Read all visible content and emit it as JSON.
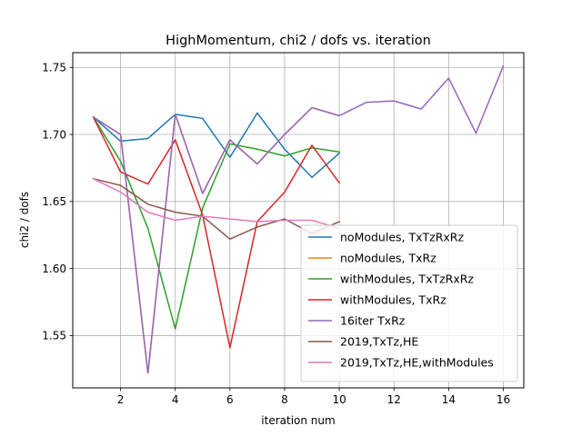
{
  "chart_data": {
    "type": "line",
    "title": "HighMomentum, chi2 / dofs vs. iteration",
    "xlabel": "iteration num",
    "ylabel": "chi2 / dofs",
    "xlim": [
      0.25,
      16.75
    ],
    "ylim": [
      1.511,
      1.761
    ],
    "xticks": [
      2,
      4,
      6,
      8,
      10,
      12,
      14,
      16
    ],
    "yticks": [
      1.55,
      1.6,
      1.65,
      1.7,
      1.75
    ],
    "ytick_labels": [
      "1.55",
      "1.60",
      "1.65",
      "1.70",
      "1.75"
    ],
    "grid": true,
    "legend_position": "lower-right",
    "series": [
      {
        "name": "noModules, TxTzRxRz",
        "color": "#1f77b4",
        "x": [
          1,
          2,
          3,
          4,
          5,
          6,
          7,
          8,
          9,
          10
        ],
        "values": [
          1.713,
          1.695,
          1.697,
          1.715,
          1.712,
          1.683,
          1.716,
          1.689,
          1.668,
          1.686
        ]
      },
      {
        "name": "noModules, TxRz",
        "color": "#ff7f0e",
        "x": [
          1,
          2,
          3,
          4,
          5,
          6,
          7,
          8,
          9,
          10
        ],
        "values": [
          1.713,
          1.7,
          1.522,
          1.715,
          1.656,
          1.696,
          1.678,
          1.7,
          1.72,
          1.714
        ]
      },
      {
        "name": "withModules, TxTzRxRz",
        "color": "#2ca02c",
        "x": [
          1,
          2,
          3,
          4,
          5,
          6,
          7,
          8,
          9,
          10
        ],
        "values": [
          1.713,
          1.68,
          1.63,
          1.555,
          1.645,
          1.693,
          1.689,
          1.684,
          1.69,
          1.687
        ]
      },
      {
        "name": "withModules, TxRz",
        "color": "#d62728",
        "x": [
          1,
          2,
          3,
          4,
          5,
          6,
          7,
          8,
          9,
          10
        ],
        "values": [
          1.713,
          1.672,
          1.663,
          1.696,
          1.64,
          1.541,
          1.635,
          1.657,
          1.692,
          1.664
        ]
      },
      {
        "name": "16iter TxRz",
        "color": "#9467bd",
        "x": [
          1,
          2,
          3,
          4,
          5,
          6,
          7,
          8,
          9,
          10,
          11,
          12,
          13,
          14,
          15,
          16
        ],
        "values": [
          1.713,
          1.7,
          1.522,
          1.715,
          1.656,
          1.696,
          1.678,
          1.7,
          1.72,
          1.714,
          1.724,
          1.725,
          1.719,
          1.742,
          1.701,
          1.751
        ]
      },
      {
        "name": "2019,TxTz,HE",
        "color": "#8c564b",
        "x": [
          1,
          2,
          3,
          4,
          5,
          6,
          7,
          8,
          9,
          10
        ],
        "values": [
          1.667,
          1.662,
          1.648,
          1.642,
          1.639,
          1.622,
          1.631,
          1.637,
          1.626,
          1.635
        ]
      },
      {
        "name": "2019,TxTz,HE,withModules",
        "color": "#e377c2",
        "x": [
          1,
          2,
          3,
          4,
          5,
          6,
          7,
          8,
          9,
          10
        ],
        "values": [
          1.667,
          1.657,
          1.642,
          1.636,
          1.639,
          1.637,
          1.635,
          1.636,
          1.636,
          1.63
        ]
      }
    ]
  }
}
